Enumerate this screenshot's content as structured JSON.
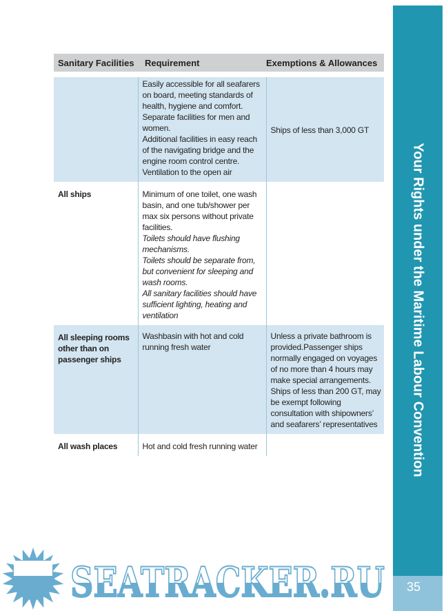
{
  "table": {
    "headers": [
      "Sanitary Facilities",
      "Requirement",
      "Exemptions & Allowances"
    ],
    "rows": [
      {
        "facility": "",
        "requirement": [
          "Easily accessible for all seafarers on board, meeting standards of health, hygiene and comfort.",
          "Separate facilities for men and women.",
          "Additional facilities in easy reach of the navigating bridge and the engine room control centre.",
          "Ventilation to the open air"
        ],
        "requirement_italic": [],
        "exemption": "Ships of less than 3,000 GT"
      },
      {
        "facility": "All ships",
        "requirement": [
          "Minimum of one toilet, one wash basin, and one tub/shower per max six persons without private facilities."
        ],
        "requirement_italic": [
          "Toilets should have flushing mechanisms.",
          "Toilets should be separate from, but convenient for sleeping and wash rooms.",
          "All sanitary facilities should have sufficient lighting, heating and ventilation"
        ],
        "exemption": ""
      },
      {
        "facility": "All sleeping rooms other than on passenger ships",
        "requirement": [
          "Washbasin with hot and cold running fresh water"
        ],
        "requirement_italic": [],
        "exemption": "Unless a private bathroom is provided.Passenger ships normally engaged on voyages of no more than 4 hours may make special arrangements. Ships of less than 200 GT, may be exempt following consultation with shipowners’ and seafarers’ representatives"
      },
      {
        "facility": "All wash places",
        "requirement": [
          "Hot and cold fresh running water"
        ],
        "requirement_italic": [],
        "exemption": ""
      }
    ]
  },
  "sidebar": {
    "title": "Your Rights under the Maritime Labour Convention",
    "page_number": "35"
  },
  "watermark": {
    "text": "SEATRACKER.RU"
  },
  "colors": {
    "sidebar": "#2196b0",
    "row_blue": "#d3e5f0",
    "header_gray": "#cfd0d1"
  }
}
